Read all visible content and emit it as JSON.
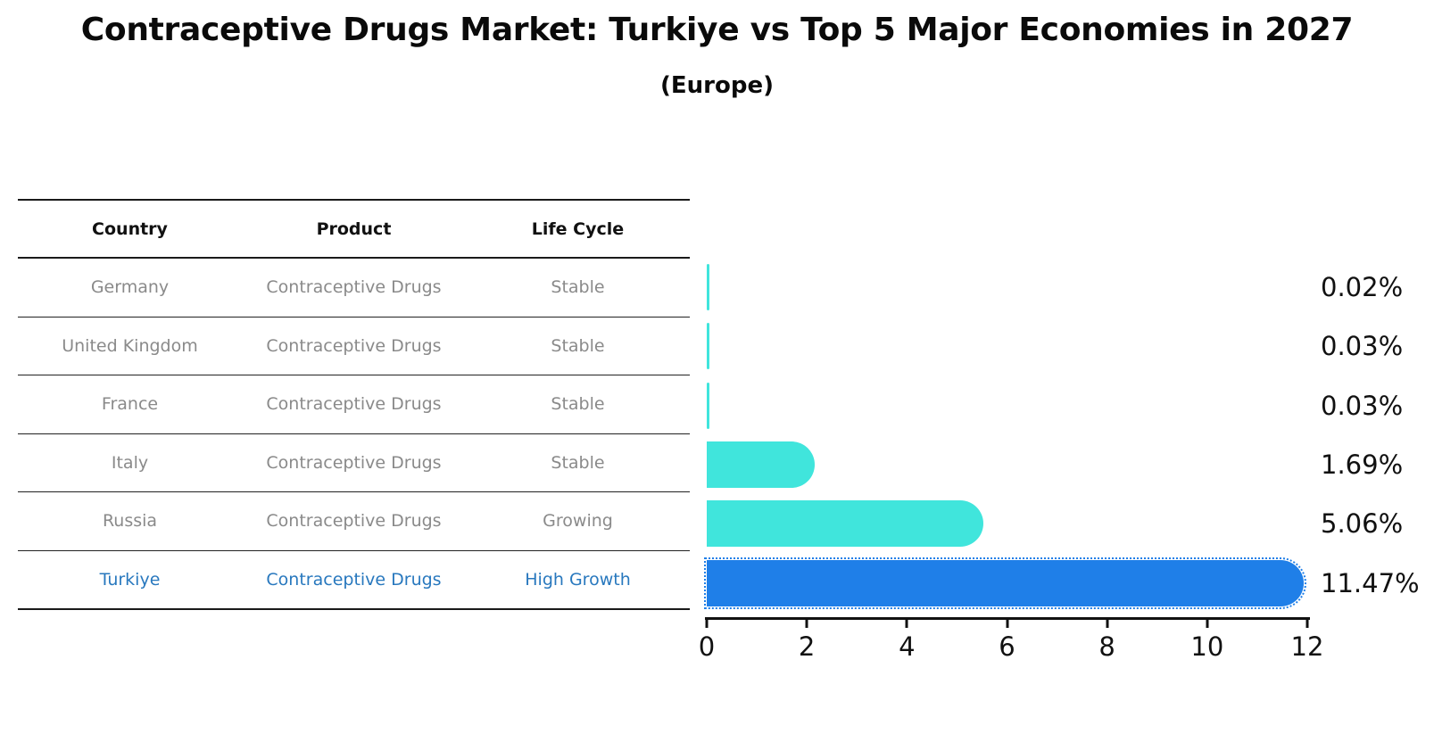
{
  "title": "Contraceptive Drugs Market: Turkiye vs Top 5 Major Economies in 2027",
  "subtitle": "(Europe)",
  "table": {
    "headers": [
      "Country",
      "Product",
      "Life Cycle"
    ],
    "rows": [
      {
        "country": "Germany",
        "product": "Contraceptive Drugs",
        "life_cycle": "Stable"
      },
      {
        "country": "United Kingdom",
        "product": "Contraceptive Drugs",
        "life_cycle": "Stable"
      },
      {
        "country": "France",
        "product": "Contraceptive Drugs",
        "life_cycle": "Stable"
      },
      {
        "country": "Italy",
        "product": "Contraceptive Drugs",
        "life_cycle": "Stable"
      },
      {
        "country": "Russia",
        "product": "Contraceptive Drugs",
        "life_cycle": "Growing"
      },
      {
        "country": "Turkiye",
        "product": "Contraceptive Drugs",
        "life_cycle": "High Growth"
      }
    ],
    "highlight_row": "Turkiye"
  },
  "chart_data": {
    "type": "bar",
    "orientation": "horizontal",
    "title": "Contraceptive Drugs Market: Turkiye vs Top 5 Major Economies in 2027",
    "subtitle": "(Europe)",
    "categories": [
      "Germany",
      "United Kingdom",
      "France",
      "Italy",
      "Russia",
      "Turkiye"
    ],
    "values": [
      0.02,
      0.03,
      0.03,
      1.69,
      5.06,
      11.47
    ],
    "value_labels": [
      "0.02%",
      "0.03%",
      "0.03%",
      "1.69%",
      "5.06%",
      "11.47%"
    ],
    "xlim": [
      0,
      12
    ],
    "xticks": [
      0,
      2,
      4,
      6,
      8,
      10,
      12
    ],
    "highlight_index": 5,
    "grid": false,
    "legend": "none"
  },
  "colors": {
    "bar-cyan": "#40E5DC",
    "bar-blue": "#1F7FE8",
    "highlight-text": "#2878BE",
    "muted-text": "#8A8A8A",
    "axis-black": "#111111"
  }
}
